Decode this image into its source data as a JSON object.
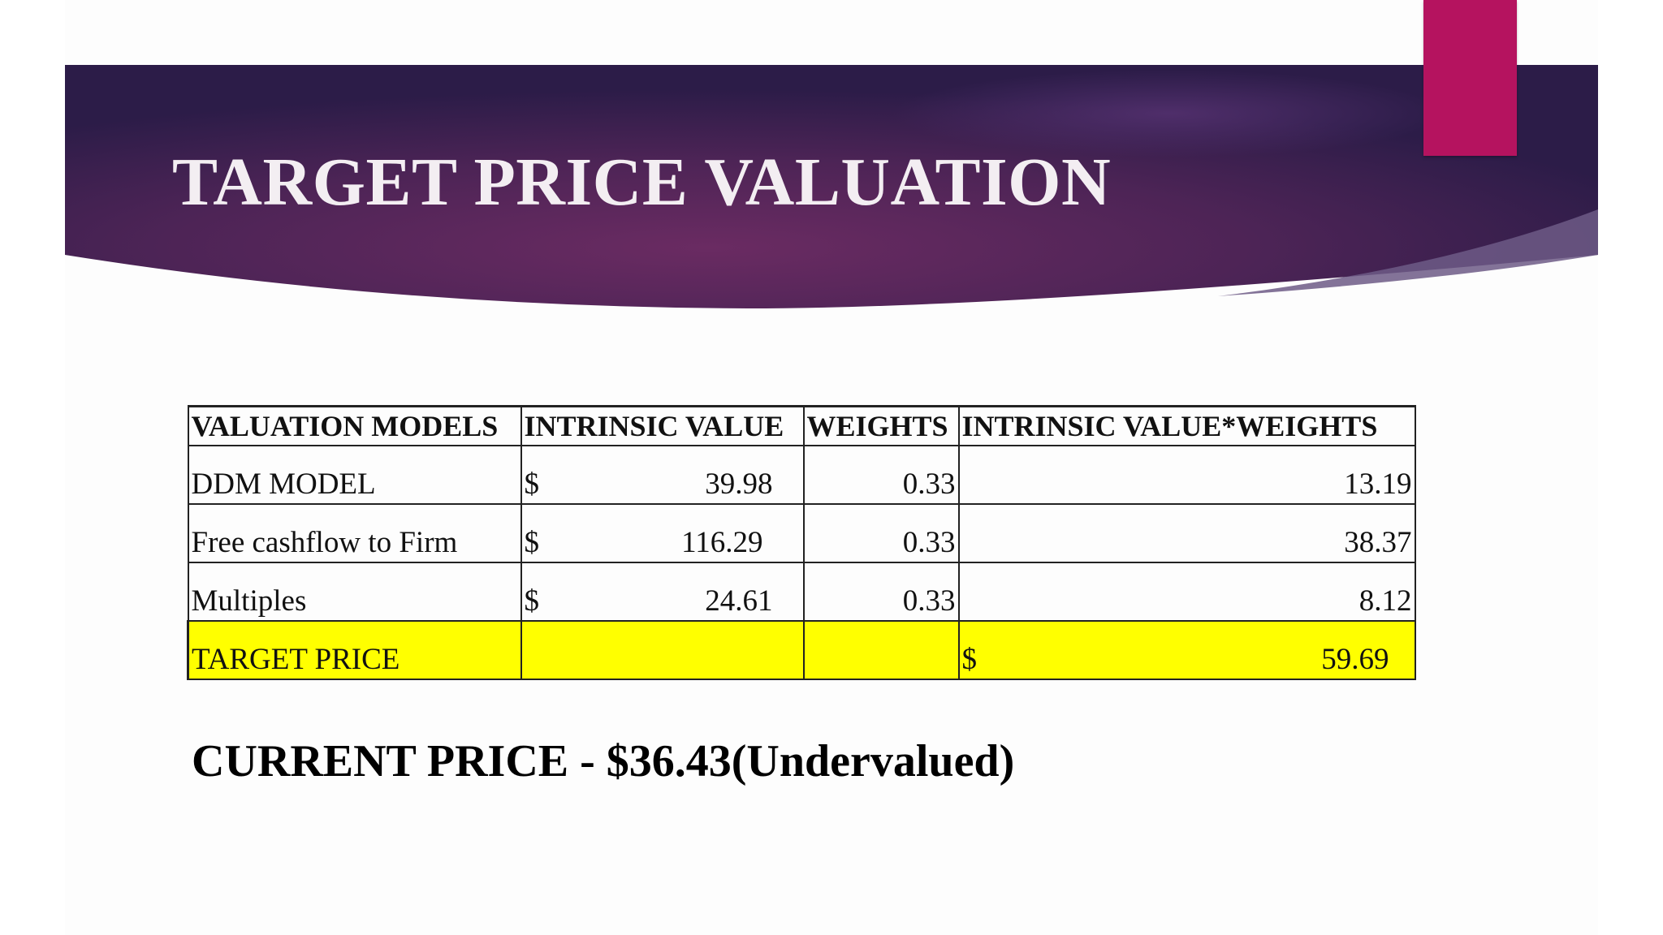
{
  "slide": {
    "title": "TARGET PRICE VALUATION",
    "accent_color": "#b5135f",
    "banner_color": "#4a2356"
  },
  "table": {
    "headers": [
      "VALUATION MODELS",
      "INTRINSIC VALUE",
      "WEIGHTS",
      "INTRINSIC VALUE*WEIGHTS"
    ],
    "rows": [
      {
        "model": "DDM MODEL",
        "currency": "$",
        "intrinsic_value": "39.98",
        "weight": "0.33",
        "weighted": "13.19"
      },
      {
        "model": "Free cashflow to Firm",
        "currency": "$",
        "intrinsic_value": "116.29",
        "weight": "0.33",
        "weighted": "38.37"
      },
      {
        "model": "Multiples",
        "currency": "$",
        "intrinsic_value": "24.61",
        "weight": "0.33",
        "weighted": "8.12"
      }
    ],
    "target": {
      "label": "TARGET PRICE",
      "currency": "$",
      "value": "59.69",
      "highlight_color": "#ffff00"
    }
  },
  "current_price": "CURRENT PRICE - $36.43(Undervalued)"
}
